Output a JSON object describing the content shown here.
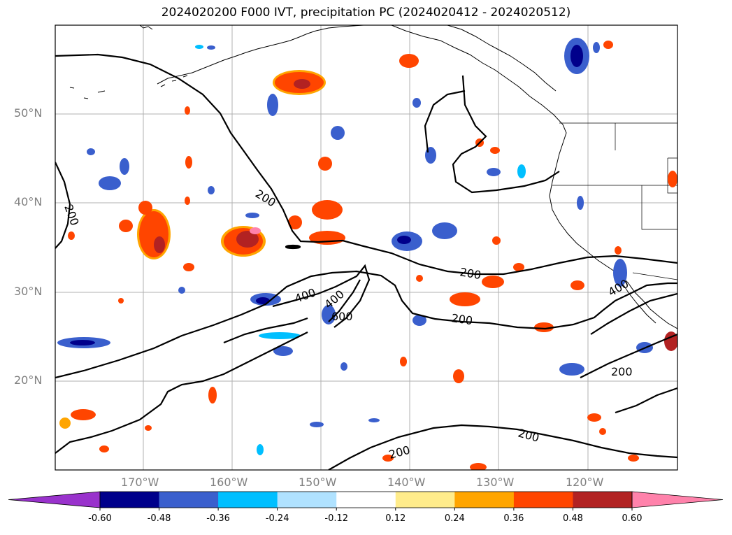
{
  "title": "2024020200 F000 IVT, precipitation PC (2024020412 - 2024020512)",
  "lat_labels": [
    "50°N",
    "40°N",
    "30°N",
    "20°N"
  ],
  "lon_labels": [
    "170°W",
    "160°W",
    "150°W",
    "140°W",
    "130°W",
    "120°W"
  ],
  "contour_labels": [
    "200",
    "200",
    "200",
    "200",
    "200",
    "200",
    "200",
    "400",
    "400",
    "400",
    "600"
  ],
  "colorbar": {
    "ticks": [
      "-0.60",
      "-0.48",
      "-0.36",
      "-0.24",
      "-0.12",
      "0.12",
      "0.24",
      "0.36",
      "0.48",
      "0.60"
    ],
    "colors": [
      "#9932cc",
      "#00008b",
      "#3a5fcd",
      "#00bfff",
      "#b0e2ff",
      "#ffffff",
      "#ffec8b",
      "#ffa500",
      "#ff4500",
      "#b22222",
      "#ff82ab"
    ]
  },
  "map_colors": {
    "neg_strong": "#00008b",
    "neg_mid": "#3a5fcd",
    "neg_light": "#00bfff",
    "pos_light": "#ffa500",
    "pos_mid": "#ff4500",
    "pos_strong": "#b22222",
    "pos_extreme": "#ff82ab"
  }
}
